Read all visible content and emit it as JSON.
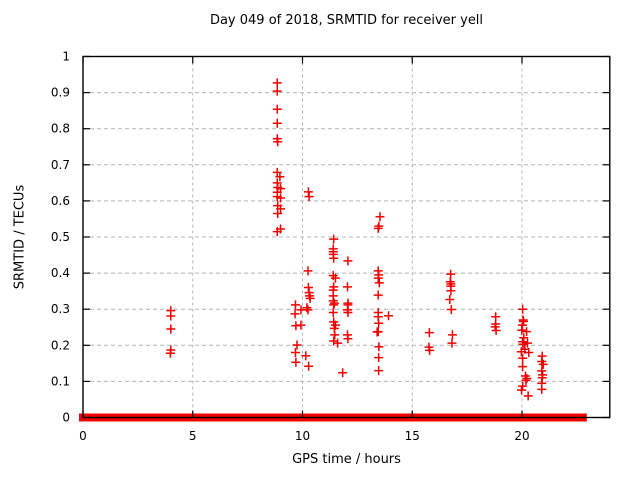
{
  "chart_data": {
    "type": "scatter",
    "title": "Day 049 of 2018, SRMTID for receiver yell",
    "xlabel": "GPS time / hours",
    "ylabel": "SRMTID / TECUs",
    "xlim": [
      0,
      24
    ],
    "ylim": [
      0,
      1
    ],
    "grid": true,
    "legend": "none",
    "marker": "plus",
    "colors": {
      "marker": "#f20000",
      "grid": "#b4b4b4",
      "frame": "#000000",
      "background": "#ffffff",
      "text": "#000000"
    },
    "x_ticks": [
      {
        "v": 0,
        "label": "0"
      },
      {
        "v": 5,
        "label": "5"
      },
      {
        "v": 10,
        "label": "10"
      },
      {
        "v": 15,
        "label": "15"
      },
      {
        "v": 20,
        "label": "20"
      }
    ],
    "y_ticks": [
      {
        "v": 0,
        "label": "0"
      },
      {
        "v": 0.1,
        "label": "0.1"
      },
      {
        "v": 0.2,
        "label": "0.2"
      },
      {
        "v": 0.3,
        "label": "0.3"
      },
      {
        "v": 0.4,
        "label": "0.4"
      },
      {
        "v": 0.5,
        "label": "0.5"
      },
      {
        "v": 0.6,
        "label": "0.6"
      },
      {
        "v": 0.7,
        "label": "0.7"
      },
      {
        "v": 0.8,
        "label": "0.8"
      },
      {
        "v": 0.9,
        "label": "0.9"
      },
      {
        "v": 1,
        "label": "1"
      }
    ],
    "series": [
      {
        "name": "SRMTID",
        "points": [
          [
            4.0,
            0.296
          ],
          [
            4.0,
            0.281
          ],
          [
            4.0,
            0.245
          ],
          [
            4.0,
            0.187
          ],
          [
            3.98,
            0.178
          ],
          [
            8.85,
            0.927
          ],
          [
            8.85,
            0.904
          ],
          [
            8.85,
            0.854
          ],
          [
            8.85,
            0.815
          ],
          [
            8.85,
            0.772
          ],
          [
            8.87,
            0.764
          ],
          [
            8.85,
            0.679
          ],
          [
            8.97,
            0.667
          ],
          [
            8.85,
            0.65
          ],
          [
            8.87,
            0.637
          ],
          [
            9.0,
            0.634
          ],
          [
            8.85,
            0.624
          ],
          [
            8.85,
            0.612
          ],
          [
            9.0,
            0.608
          ],
          [
            8.87,
            0.587
          ],
          [
            9.0,
            0.578
          ],
          [
            8.87,
            0.565
          ],
          [
            9.0,
            0.522
          ],
          [
            8.85,
            0.515
          ],
          [
            9.68,
            0.312
          ],
          [
            9.66,
            0.287
          ],
          [
            9.7,
            0.254
          ],
          [
            9.75,
            0.201
          ],
          [
            9.68,
            0.18
          ],
          [
            9.7,
            0.153
          ],
          [
            9.93,
            0.298
          ],
          [
            9.93,
            0.256
          ],
          [
            10.27,
            0.625
          ],
          [
            10.3,
            0.612
          ],
          [
            10.25,
            0.406
          ],
          [
            10.27,
            0.36
          ],
          [
            10.3,
            0.346
          ],
          [
            10.32,
            0.337
          ],
          [
            10.35,
            0.33
          ],
          [
            10.2,
            0.304
          ],
          [
            10.25,
            0.298
          ],
          [
            10.15,
            0.171
          ],
          [
            10.28,
            0.142
          ],
          [
            11.42,
            0.494
          ],
          [
            11.4,
            0.467
          ],
          [
            11.4,
            0.459
          ],
          [
            11.4,
            0.452
          ],
          [
            11.42,
            0.441
          ],
          [
            11.4,
            0.393
          ],
          [
            11.5,
            0.386
          ],
          [
            11.42,
            0.362
          ],
          [
            11.4,
            0.353
          ],
          [
            11.4,
            0.337
          ],
          [
            11.4,
            0.323
          ],
          [
            11.45,
            0.317
          ],
          [
            11.42,
            0.312
          ],
          [
            11.4,
            0.291
          ],
          [
            11.42,
            0.265
          ],
          [
            11.5,
            0.256
          ],
          [
            11.45,
            0.247
          ],
          [
            11.47,
            0.229
          ],
          [
            11.42,
            0.212
          ],
          [
            11.6,
            0.206
          ],
          [
            11.83,
            0.124
          ],
          [
            12.07,
            0.434
          ],
          [
            12.05,
            0.362
          ],
          [
            12.07,
            0.317
          ],
          [
            12.07,
            0.312
          ],
          [
            12.05,
            0.298
          ],
          [
            12.07,
            0.291
          ],
          [
            12.05,
            0.229
          ],
          [
            12.07,
            0.218
          ],
          [
            13.53,
            0.556
          ],
          [
            13.48,
            0.53
          ],
          [
            13.45,
            0.524
          ],
          [
            13.45,
            0.406
          ],
          [
            13.47,
            0.395
          ],
          [
            13.45,
            0.386
          ],
          [
            13.5,
            0.373
          ],
          [
            13.45,
            0.339
          ],
          [
            13.45,
            0.291
          ],
          [
            13.45,
            0.279
          ],
          [
            13.47,
            0.261
          ],
          [
            13.45,
            0.238
          ],
          [
            13.4,
            0.237
          ],
          [
            13.48,
            0.196
          ],
          [
            13.47,
            0.166
          ],
          [
            13.47,
            0.13
          ],
          [
            13.92,
            0.282
          ],
          [
            15.78,
            0.235
          ],
          [
            15.76,
            0.195
          ],
          [
            15.79,
            0.186
          ],
          [
            16.75,
            0.397
          ],
          [
            16.73,
            0.376
          ],
          [
            16.76,
            0.37
          ],
          [
            16.76,
            0.364
          ],
          [
            16.76,
            0.351
          ],
          [
            16.71,
            0.327
          ],
          [
            16.78,
            0.299
          ],
          [
            16.83,
            0.229
          ],
          [
            16.81,
            0.206
          ],
          [
            18.8,
            0.279
          ],
          [
            18.8,
            0.259
          ],
          [
            18.78,
            0.251
          ],
          [
            18.82,
            0.241
          ],
          [
            20.03,
            0.3
          ],
          [
            20.05,
            0.27
          ],
          [
            20.07,
            0.266
          ],
          [
            20.02,
            0.256
          ],
          [
            19.99,
            0.242
          ],
          [
            20.21,
            0.238
          ],
          [
            20.08,
            0.221
          ],
          [
            20.03,
            0.21
          ],
          [
            20.05,
            0.203
          ],
          [
            20.25,
            0.206
          ],
          [
            20.13,
            0.189
          ],
          [
            19.97,
            0.182
          ],
          [
            20.31,
            0.18
          ],
          [
            20.03,
            0.164
          ],
          [
            20.03,
            0.141
          ],
          [
            20.16,
            0.115
          ],
          [
            20.22,
            0.108
          ],
          [
            20.18,
            0.103
          ],
          [
            20.03,
            0.087
          ],
          [
            19.98,
            0.076
          ],
          [
            20.28,
            0.06
          ],
          [
            20.92,
            0.17
          ],
          [
            20.9,
            0.155
          ],
          [
            20.97,
            0.147
          ],
          [
            20.9,
            0.129
          ],
          [
            20.94,
            0.118
          ],
          [
            20.92,
            0.11
          ],
          [
            20.9,
            0.095
          ],
          [
            20.9,
            0.078
          ]
        ]
      }
    ],
    "zero_band_segments": [
      [
        0.0,
        0.2
      ],
      [
        0.4,
        2.93
      ],
      [
        3.13,
        3.96
      ],
      [
        4.1,
        4.45
      ],
      [
        4.6,
        4.73
      ],
      [
        4.83,
        4.94
      ],
      [
        5.0,
        5.08
      ],
      [
        5.44,
        5.52
      ],
      [
        5.59,
        5.93
      ],
      [
        6.03,
        6.28
      ],
      [
        6.38,
        6.58
      ],
      [
        6.7,
        8.94
      ],
      [
        9.17,
        9.47
      ],
      [
        9.58,
        9.82
      ],
      [
        9.98,
        10.13
      ],
      [
        10.28,
        10.66
      ],
      [
        10.77,
        10.92
      ],
      [
        11.04,
        11.5
      ],
      [
        11.65,
        12.09
      ],
      [
        12.21,
        13.46
      ],
      [
        13.58,
        20.0
      ],
      [
        20.13,
        20.31
      ],
      [
        20.4,
        20.56
      ],
      [
        20.66,
        20.97
      ],
      [
        21.08,
        21.96
      ],
      [
        22.07,
        22.77
      ]
    ]
  }
}
